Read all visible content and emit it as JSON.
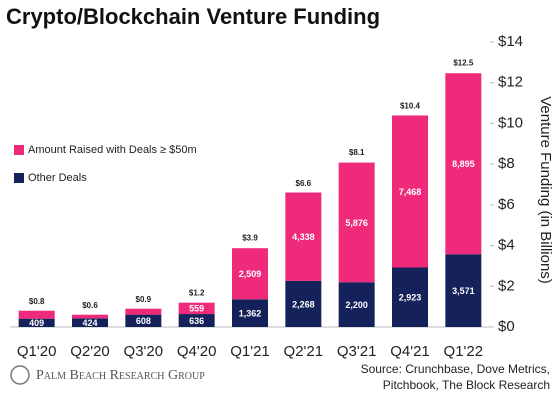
{
  "chart_data": {
    "type": "stacked-bar",
    "title": "Crypto/Blockchain Venture Funding",
    "y_axis_label": "Venture Funding (in Billions)",
    "categories": [
      "Q1'20",
      "Q2'20",
      "Q3'20",
      "Q4'20",
      "Q1'21",
      "Q2'21",
      "Q3'21",
      "Q4'21",
      "Q1'22"
    ],
    "series": [
      {
        "name": "Other Deals",
        "color": "#15215a",
        "values": [
          0.409,
          0.424,
          0.608,
          0.636,
          1.362,
          2.268,
          2.2,
          2.923,
          3.571
        ],
        "value_labels": [
          "409",
          "424",
          "608",
          "636",
          "1,362",
          "2,268",
          "2,200",
          "2,923",
          "3,571"
        ]
      },
      {
        "name": "Amount Raised with Deals ≥ $50m",
        "color": "#ef2a7b",
        "values": [
          0.39,
          0.18,
          0.29,
          0.559,
          2.509,
          4.338,
          5.876,
          7.468,
          8.895
        ],
        "value_labels": [
          null,
          null,
          null,
          "559",
          "2,509",
          "4,338",
          "5,876",
          "7,468",
          "8,895"
        ]
      }
    ],
    "totals": [
      {
        "value": 0.8,
        "label": "$0.8"
      },
      {
        "value": 0.6,
        "label": "$0.6"
      },
      {
        "value": 0.9,
        "label": "$0.9"
      },
      {
        "value": 1.2,
        "label": "$1.2"
      },
      {
        "value": 3.9,
        "label": "$3.9"
      },
      {
        "value": 6.6,
        "label": "$6.6"
      },
      {
        "value": 8.1,
        "label": "$8.1"
      },
      {
        "value": 10.4,
        "label": "$10.4"
      },
      {
        "value": 12.5,
        "label": "$12.5"
      }
    ],
    "ylim": [
      0,
      14
    ],
    "yticks": [
      {
        "value": 0,
        "label": "$0"
      },
      {
        "value": 2,
        "label": "$2"
      },
      {
        "value": 4,
        "label": "$4"
      },
      {
        "value": 6,
        "label": "$6"
      },
      {
        "value": 8,
        "label": "$8"
      },
      {
        "value": 10,
        "label": "$10"
      },
      {
        "value": 12,
        "label": "$12"
      },
      {
        "value": 14,
        "label": "$14"
      }
    ],
    "y_axis_side": "right",
    "source": [
      "Source: Crunchbase, Dove Metrics,",
      "Pitchbook, The Block Research"
    ],
    "brand": "Palm Beach Research Group"
  }
}
